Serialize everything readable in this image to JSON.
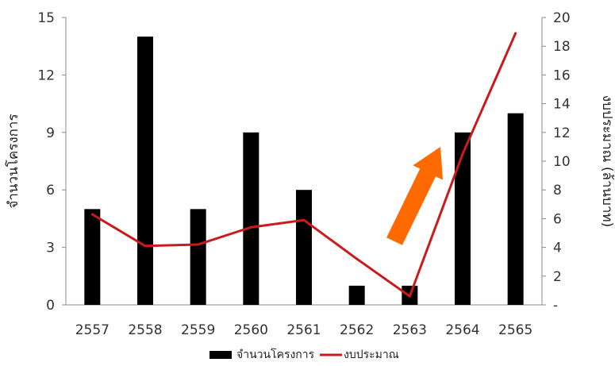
{
  "chart_data": {
    "type": "bar",
    "categories": [
      "2557",
      "2558",
      "2559",
      "2560",
      "2561",
      "2562",
      "2563",
      "2564",
      "2565"
    ],
    "series": [
      {
        "name": "จำนวนโครงการ",
        "kind": "bar",
        "axis": "left",
        "color": "#000000",
        "values": [
          5,
          14,
          5,
          9,
          6,
          1,
          1,
          9,
          10
        ]
      },
      {
        "name": "งบประมาณ",
        "kind": "line",
        "axis": "right",
        "color": "#cc1a1a",
        "values": [
          6.3,
          4.1,
          4.2,
          5.4,
          5.9,
          3.2,
          0.6,
          10.5,
          18.9
        ]
      }
    ],
    "ylabel_left": "จำนวนโครงการ",
    "ylabel_right": "งบประมาณ (ล้านบาท)",
    "ylim_left": [
      0,
      15
    ],
    "yticks_left": [
      0,
      3,
      6,
      9,
      12,
      15
    ],
    "ylim_right": [
      0,
      20
    ],
    "yticks_right": [
      0,
      2,
      4,
      6,
      8,
      10,
      12,
      14,
      16,
      18,
      20
    ],
    "right_tick_labels": [
      "-",
      "2",
      "4",
      "6",
      "8",
      "10",
      "12",
      "14",
      "16",
      "18",
      "20"
    ],
    "grid": false,
    "legend_position": "bottom",
    "annotation": {
      "type": "arrow",
      "color": "#ff6a00",
      "description": "upward trend arrow"
    }
  }
}
